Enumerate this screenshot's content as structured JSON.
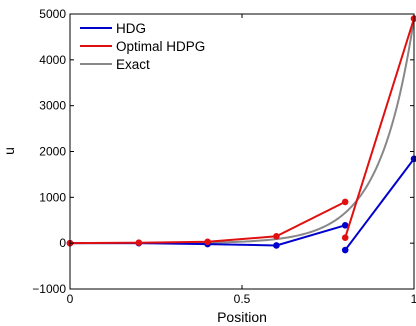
{
  "chart_data": {
    "type": "line",
    "xlabel": "Position",
    "ylabel": "u",
    "xlim": [
      0,
      1
    ],
    "ylim": [
      -1000,
      5000
    ],
    "xticks": [
      0,
      0.5,
      1
    ],
    "xtick_labels": [
      "0",
      "0.5",
      "1"
    ],
    "yticks": [
      -1000,
      0,
      1000,
      2000,
      3000,
      4000,
      5000
    ],
    "ytick_labels": [
      "−1000",
      "0",
      "1000",
      "2000",
      "3000",
      "4000",
      "5000"
    ],
    "grid": false,
    "legend_position": "top-left",
    "series": [
      {
        "name": "HDG",
        "color": "#0000cc",
        "markers": true,
        "segments": [
          [
            [
              0,
              0
            ],
            [
              0.2,
              0
            ],
            [
              0.4,
              -20
            ],
            [
              0.6,
              -50
            ],
            [
              0.8,
              390
            ]
          ],
          [
            [
              0.8,
              -150
            ],
            [
              1.0,
              1840
            ]
          ]
        ]
      },
      {
        "name": "Optimal HDPG",
        "color": "#e01010",
        "markers": true,
        "segments": [
          [
            [
              0,
              0
            ],
            [
              0.2,
              10
            ],
            [
              0.4,
              30
            ],
            [
              0.6,
              150
            ],
            [
              0.8,
              900
            ]
          ],
          [
            [
              0.8,
              120
            ],
            [
              1.0,
              4900
            ]
          ]
        ]
      },
      {
        "name": "Exact",
        "color": "#888888",
        "markers": false,
        "function": "exp",
        "coefficient": 0.2225,
        "rate": 10
      }
    ]
  }
}
